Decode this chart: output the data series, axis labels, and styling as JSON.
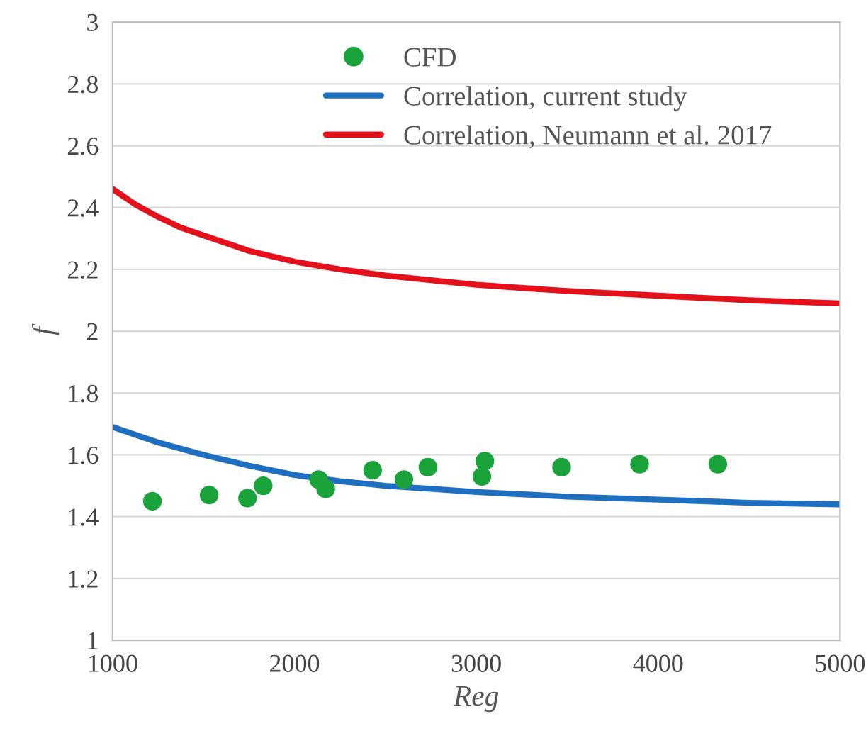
{
  "chart_data": {
    "type": "scatter",
    "xlabel": "Reg",
    "ylabel": "f",
    "xlim": [
      1000,
      5000
    ],
    "ylim": [
      1,
      3
    ],
    "xticks": [
      1000,
      2000,
      3000,
      4000,
      5000
    ],
    "yticks": [
      1,
      1.2,
      1.4,
      1.6,
      1.8,
      2,
      2.2,
      2.4,
      2.6,
      2.8,
      3
    ],
    "grid": "y",
    "legend": "top",
    "series": [
      {
        "name": "CFD",
        "marker": "circle",
        "color": "#1aa33a",
        "x": [
          1219,
          1531,
          1742,
          1828,
          2133,
          2172,
          2430,
          2602,
          2734,
          3031,
          3047,
          3469,
          3898,
          4328
        ],
        "values": [
          1.45,
          1.47,
          1.46,
          1.5,
          1.52,
          1.49,
          1.55,
          1.52,
          1.56,
          1.53,
          1.58,
          1.56,
          1.57,
          1.57
        ]
      },
      {
        "name": "Correlation, current study",
        "type": "line",
        "marker": "none",
        "color": "#1f6fc0",
        "x": [
          1000,
          1125,
          1250,
          1375,
          1500,
          1750,
          2000,
          2250,
          2500,
          2750,
          3000,
          3500,
          4000,
          4500,
          5000
        ],
        "values": [
          1.69,
          1.665,
          1.64,
          1.62,
          1.6,
          1.565,
          1.535,
          1.515,
          1.5,
          1.49,
          1.48,
          1.465,
          1.455,
          1.445,
          1.44
        ]
      },
      {
        "name": "Correlation, Neumann et al. 2017",
        "type": "line",
        "marker": "none",
        "color": "#e3111b",
        "x": [
          1000,
          1125,
          1250,
          1375,
          1500,
          1750,
          2000,
          2250,
          2500,
          2750,
          3000,
          3500,
          4000,
          4500,
          5000
        ],
        "values": [
          2.46,
          2.41,
          2.37,
          2.335,
          2.31,
          2.26,
          2.225,
          2.2,
          2.18,
          2.165,
          2.15,
          2.13,
          2.115,
          2.1,
          2.09
        ]
      }
    ]
  }
}
